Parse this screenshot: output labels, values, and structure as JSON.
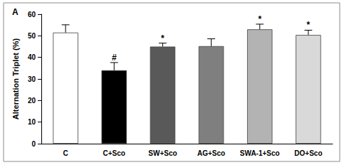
{
  "chart_data": {
    "type": "bar",
    "title": "A",
    "y_label": "Alternation Triplet (%)",
    "categories": [
      "C",
      "C+Sco",
      "SW+Sco",
      "AG+Sco",
      "SWA-1+Sco",
      "DO+Sco"
    ],
    "values": [
      51.5,
      34,
      45,
      45.2,
      53,
      50.4
    ],
    "errors": [
      3.6,
      3.6,
      1.6,
      3.4,
      2.4,
      2.2
    ],
    "significance": [
      null,
      "#",
      "*",
      null,
      "*",
      "*"
    ],
    "colors": [
      "#ffffff",
      "#000000",
      "#595959",
      "#7f7f7f",
      "#b3b3b3",
      "#d9d9d9"
    ],
    "ylim": [
      0,
      60
    ],
    "yticks": [
      0,
      10,
      20,
      30,
      40,
      50,
      60
    ],
    "grid": false
  }
}
